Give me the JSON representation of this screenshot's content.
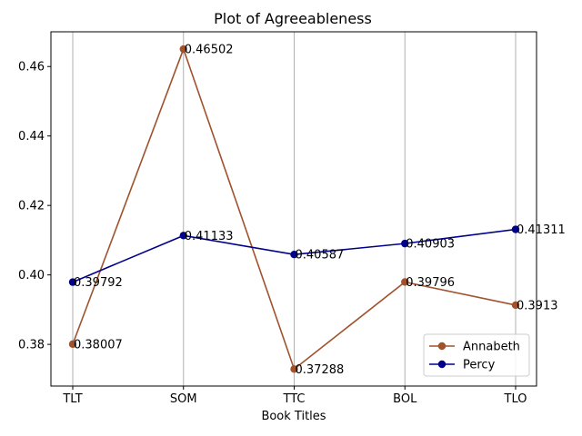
{
  "chart_data": {
    "type": "line",
    "title": "Plot of Agreeableness",
    "xlabel": "Book Titles",
    "ylabel": "",
    "categories": [
      "TLT",
      "SOM",
      "TTC",
      "BOL",
      "TLO"
    ],
    "ylim": [
      0.368,
      0.47
    ],
    "yticks": [
      "0.38",
      "0.40",
      "0.42",
      "0.44",
      "0.46"
    ],
    "grid": "vertical",
    "legend_position": "lower-right",
    "series": [
      {
        "name": "Annabeth",
        "color": "#a0522d",
        "values": [
          0.38007,
          0.46502,
          0.37288,
          0.39796,
          0.3913
        ],
        "labels": [
          "0.38007",
          "0.46502",
          "0.37288",
          "0.39796",
          "0.3913"
        ]
      },
      {
        "name": "Percy",
        "color": "#00008b",
        "values": [
          0.39792,
          0.41133,
          0.40587,
          0.40903,
          0.41311
        ],
        "labels": [
          "0.39792",
          "0.41133",
          "0.40587",
          "0.40903",
          "0.41311"
        ]
      }
    ]
  }
}
